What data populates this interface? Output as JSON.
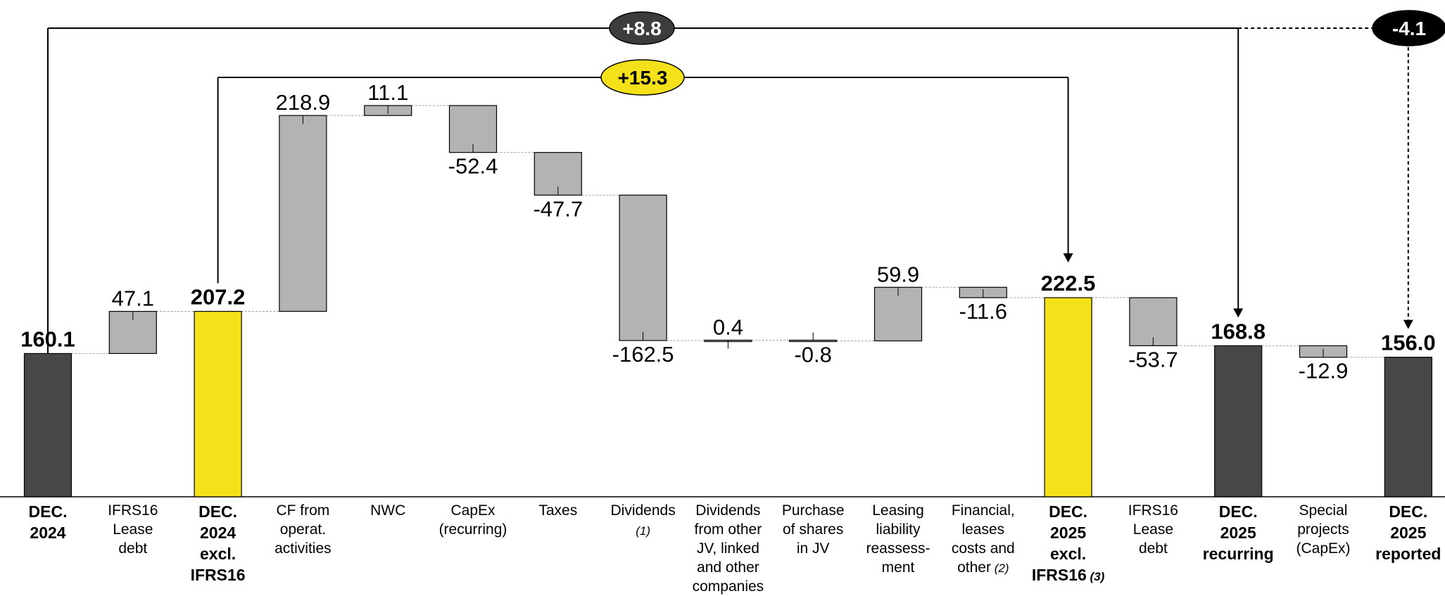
{
  "chart_data": {
    "type": "waterfall",
    "title": "",
    "xlabel": "",
    "ylabel": "",
    "categories": [
      {
        "label": "DEC.\n2024",
        "note": "",
        "kind": "total_dark",
        "start": 0,
        "end": 160.1,
        "value_label": "160.1"
      },
      {
        "label": "IFRS16\nLease\ndebt",
        "note": "",
        "kind": "delta",
        "start": 160.1,
        "end": 207.2,
        "value_label": "47.1"
      },
      {
        "label": "DEC.\n2024\nexcl.\nIFRS16",
        "note": "",
        "kind": "total_yellow",
        "start": 0,
        "end": 207.2,
        "value_label": "207.2"
      },
      {
        "label": "CF from\noperat.\nactivities",
        "note": "",
        "kind": "delta",
        "start": 207.2,
        "end": 426.1,
        "value_label": "218.9"
      },
      {
        "label": "NWC",
        "note": "",
        "kind": "delta",
        "start": 426.1,
        "end": 437.2,
        "value_label": "11.1"
      },
      {
        "label": "CapEx\n(recurring)",
        "note": "",
        "kind": "delta",
        "start": 437.2,
        "end": 384.8,
        "value_label": "-52.4"
      },
      {
        "label": "Taxes",
        "note": "",
        "kind": "delta",
        "start": 384.8,
        "end": 337.1,
        "value_label": "-47.7"
      },
      {
        "label": "Dividends",
        "note": "(1)",
        "kind": "delta",
        "start": 337.1,
        "end": 174.6,
        "value_label": "-162.5"
      },
      {
        "label": "Dividends\nfrom other\nJV, linked\nand other\ncompanies",
        "note": "",
        "kind": "delta",
        "start": 174.6,
        "end": 175.0,
        "value_label": "0.4"
      },
      {
        "label": "Purchase\nof shares\nin JV",
        "note": "",
        "kind": "delta",
        "start": 175.0,
        "end": 174.2,
        "value_label": "-0.8"
      },
      {
        "label": "Leasing\nliability\nreassess-\nment",
        "note": "",
        "kind": "delta",
        "start": 174.2,
        "end": 234.1,
        "value_label": "59.9"
      },
      {
        "label": "Financial,\nleases\ncosts and\nother",
        "note": "(2)",
        "kind": "delta",
        "start": 234.1,
        "end": 222.5,
        "value_label": "-11.6"
      },
      {
        "label": "DEC.\n2025\nexcl.\nIFRS16",
        "note": "(3)",
        "kind": "total_yellow",
        "start": 0,
        "end": 222.5,
        "value_label": "222.5"
      },
      {
        "label": "IFRS16\nLease\ndebt",
        "note": "",
        "kind": "delta",
        "start": 222.5,
        "end": 168.8,
        "value_label": "-53.7"
      },
      {
        "label": "DEC.\n2025\nrecurring",
        "note": "",
        "kind": "total_dark",
        "start": 0,
        "end": 168.8,
        "value_label": "168.8"
      },
      {
        "label": "Special\nprojects\n(CapEx)",
        "note": "",
        "kind": "delta",
        "start": 168.8,
        "end": 155.9,
        "value_label": "-12.9"
      },
      {
        "label": "DEC.\n2025\nreported",
        "note": "",
        "kind": "total_dark",
        "start": 0,
        "end": 156.0,
        "value_label": "156.0"
      }
    ],
    "bridges": [
      {
        "label": "+8.8",
        "from_index": 0,
        "to_index": 14,
        "style": "dark"
      },
      {
        "label": "+15.3",
        "from_index": 2,
        "to_index": 12,
        "style": "yellow"
      },
      {
        "label": "-4.1",
        "from_index": 14,
        "to_index": 16,
        "style": "black",
        "dashed": true
      }
    ],
    "colors": {
      "dark": "#474747",
      "yellow": "#f5e11a",
      "delta": "#b3b3b3",
      "badge_dark": "#3c3c3c",
      "badge_black": "#000000"
    },
    "legend": "none",
    "grid": false
  }
}
